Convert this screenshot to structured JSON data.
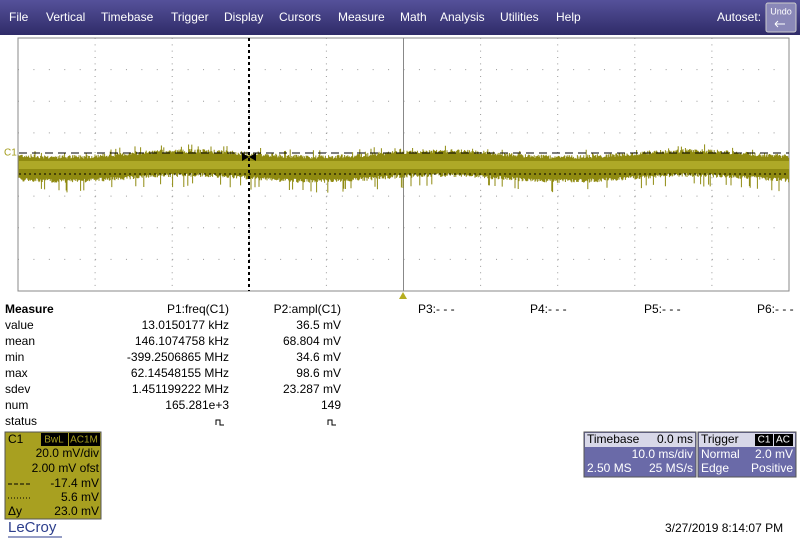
{
  "menu": {
    "items": [
      "File",
      "Vertical",
      "Timebase",
      "Trigger",
      "Display",
      "Cursors",
      "Measure",
      "Math",
      "Analysis",
      "Utilities",
      "Help"
    ],
    "autoset": "Autoset:",
    "undo": "Undo"
  },
  "grid": {
    "channel_label": "C1"
  },
  "measure": {
    "header": [
      "Measure",
      "P1:freq(C1)",
      "P2:ampl(C1)",
      "P3:- - -",
      "P4:- - -",
      "P5:- - -",
      "P6:- - -"
    ],
    "rows": [
      [
        "value",
        "13.0150177 kHz",
        "36.5 mV"
      ],
      [
        "mean",
        "146.1074758 kHz",
        "68.804 mV"
      ],
      [
        "min",
        "-399.2506865 MHz",
        "34.6 mV"
      ],
      [
        "max",
        "62.14548155 MHz",
        "98.6 mV"
      ],
      [
        "sdev",
        "1.451199222 MHz",
        "23.287 mV"
      ],
      [
        "num",
        "165.281e+3",
        "149"
      ],
      [
        "status"
      ]
    ]
  },
  "channel": {
    "name": "C1",
    "tags": [
      "BwL",
      "AC1M"
    ],
    "lines": [
      "20.0 mV/div",
      "2.00 mV ofst",
      "-17.4 mV",
      "5.6 mV"
    ],
    "delta_label": "Δy",
    "delta": "23.0 mV"
  },
  "timebase": {
    "title": "Timebase",
    "delay": "0.0 ms",
    "rate": "10.0 ms/div",
    "samples": "2.50 MS",
    "sample_rate": "25 MS/s"
  },
  "trigger": {
    "title": "Trigger",
    "tags": [
      "C1",
      "AC"
    ],
    "mode": "Normal",
    "level": "2.0 mV",
    "type": "Edge",
    "slope": "Positive"
  },
  "footer": {
    "logo": "LeCroy",
    "timestamp": "3/27/2019 8:14:07 PM"
  }
}
